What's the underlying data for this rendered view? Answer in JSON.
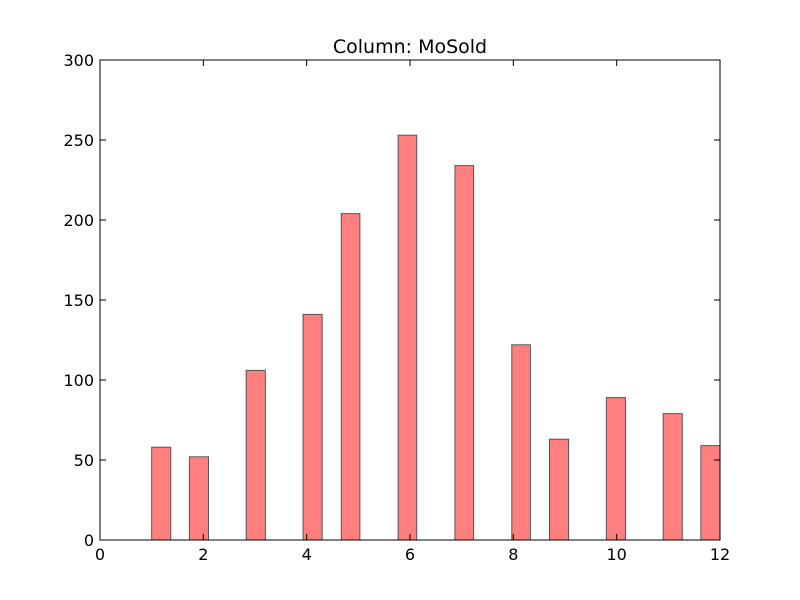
{
  "chart_data": {
    "type": "bar",
    "title": "Column: MoSold",
    "xlabel": "",
    "ylabel": "",
    "xlim": [
      0,
      12
    ],
    "ylim": [
      0,
      300
    ],
    "xticks": [
      0,
      2,
      4,
      6,
      8,
      10,
      12
    ],
    "yticks": [
      0,
      50,
      100,
      150,
      200,
      250,
      300
    ],
    "grid": false,
    "bar_color": "#ff7f7f",
    "bar_edge_color": "#555555",
    "bins": [
      {
        "x0": 1.0,
        "x1": 1.37,
        "value": 58
      },
      {
        "x0": 1.73,
        "x1": 2.1,
        "value": 52
      },
      {
        "x0": 2.83,
        "x1": 3.2,
        "value": 106
      },
      {
        "x0": 3.93,
        "x1": 4.3,
        "value": 141
      },
      {
        "x0": 4.67,
        "x1": 5.03,
        "value": 204
      },
      {
        "x0": 5.77,
        "x1": 6.13,
        "value": 253
      },
      {
        "x0": 6.87,
        "x1": 7.23,
        "value": 234
      },
      {
        "x0": 7.97,
        "x1": 8.33,
        "value": 122
      },
      {
        "x0": 8.7,
        "x1": 9.07,
        "value": 63
      },
      {
        "x0": 9.8,
        "x1": 10.17,
        "value": 89
      },
      {
        "x0": 10.9,
        "x1": 11.27,
        "value": 79
      },
      {
        "x0": 11.63,
        "x1": 12.0,
        "value": 59
      }
    ]
  }
}
